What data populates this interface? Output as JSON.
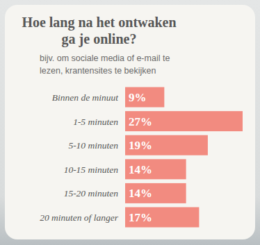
{
  "chart_data": {
    "type": "bar",
    "title": "Hoe lang na het ontwaken ga je online?",
    "subtitle": "bijv. om sociale media of e-mail te lezen, krantensites te bekijken",
    "orientation": "horizontal",
    "categories": [
      "Binnen de minuut",
      "1-5 minuten",
      "5-10 minuten",
      "10-15 minuten",
      "15-20 minuten",
      "20 minuten of langer"
    ],
    "values": [
      9,
      27,
      19,
      14,
      14,
      17
    ],
    "value_labels": [
      "9%",
      "27%",
      "19%",
      "14%",
      "14%",
      "17%"
    ],
    "color": "#f28b80",
    "xlim": [
      0,
      27
    ],
    "data_labels": true,
    "tick_labels": "y",
    "grid": false
  }
}
